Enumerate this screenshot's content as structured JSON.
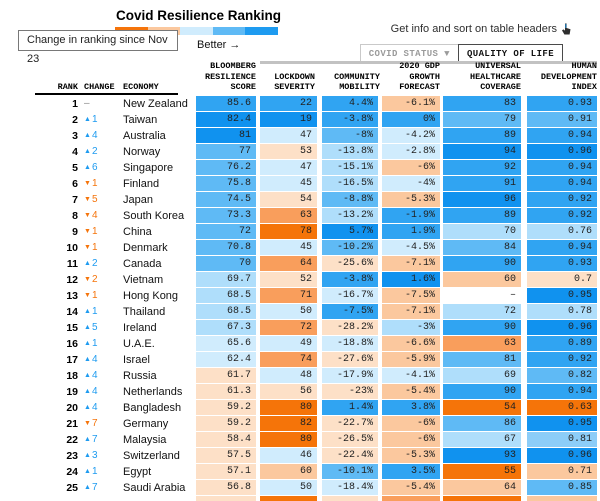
{
  "title": "Covid Resilience Ranking",
  "legend": {
    "tooltip": "Change in ranking since Nov 23",
    "better_label": "Better →",
    "gradient": [
      "#F5740B",
      "#FBC89E",
      "#D0ECFD",
      "#5FBAF5",
      "#1E9BF0"
    ]
  },
  "toolbar": {
    "hint": "Get info and sort on table headers",
    "tabs": [
      {
        "label": "COVID STATUS",
        "caret": "▼",
        "active": false
      },
      {
        "label": "QUALITY OF LIFE",
        "caret": "",
        "active": true
      }
    ]
  },
  "icons": {
    "up_arrow": "▲",
    "down_arrow": "▼",
    "no_change": "–",
    "pointer": "pointer-hand"
  },
  "palette": {
    "B1": "#1092EF",
    "B2": "#30A4F2",
    "B3": "#5FBAF5",
    "B4": "#8CCDF8",
    "B5": "#AFDEFB",
    "B6": "#D0ECFD",
    "O1": "#F57409",
    "O2": "#F99E5C",
    "O3": "#FBC89E",
    "O4": "#FDE0C7",
    "W": "#FFFFFF"
  },
  "headers": {
    "rank": "RANK",
    "change": "CHANGE",
    "economy": "ECONOMY",
    "score": "BLOOMBERG\nRESILIENCE\nSCORE",
    "lockdown": "LOCKDOWN\nSEVERITY",
    "mobility": "COMMUNITY\nMOBILITY",
    "gdp": "2020 GDP\nGROWTH\nFORECAST",
    "healthcare": "UNIVERSAL\nHEALTHCARE\nCOVERAGE",
    "hdi": "HUMAN\nDEVELOPMENT\nINDEX"
  },
  "chart_data": {
    "type": "table",
    "title": "Covid Resilience Ranking",
    "columns": [
      "Rank",
      "Change since Nov 23",
      "Economy",
      "Bloomberg Resilience Score",
      "Lockdown Severity",
      "Community Mobility",
      "2020 GDP Growth Forecast",
      "Universal Healthcare Coverage",
      "Human Development Index"
    ],
    "rows": [
      {
        "rank": "1",
        "dir": "none",
        "change": "–",
        "economy": "New Zealand",
        "score": {
          "v": "85.6",
          "c": "B2"
        },
        "lockdown": {
          "v": "22",
          "c": "B2"
        },
        "mobility": {
          "v": "4.4%",
          "c": "B2"
        },
        "gdp": {
          "v": "-6.1%",
          "c": "O3"
        },
        "healthcare": {
          "v": "83",
          "c": "B2"
        },
        "hdi": {
          "v": "0.93",
          "c": "B2"
        }
      },
      {
        "rank": "2",
        "dir": "up",
        "change": "1",
        "economy": "Taiwan",
        "score": {
          "v": "82.4",
          "c": "B1"
        },
        "lockdown": {
          "v": "19",
          "c": "B1"
        },
        "mobility": {
          "v": "-3.8%",
          "c": "B2"
        },
        "gdp": {
          "v": "0%",
          "c": "B2"
        },
        "healthcare": {
          "v": "79",
          "c": "B3"
        },
        "hdi": {
          "v": "0.91",
          "c": "B3"
        }
      },
      {
        "rank": "3",
        "dir": "up",
        "change": "4",
        "economy": "Australia",
        "score": {
          "v": "81",
          "c": "B1"
        },
        "lockdown": {
          "v": "47",
          "c": "B6"
        },
        "mobility": {
          "v": "-8%",
          "c": "B3"
        },
        "gdp": {
          "v": "-4.2%",
          "c": "B6"
        },
        "healthcare": {
          "v": "89",
          "c": "B2"
        },
        "hdi": {
          "v": "0.94",
          "c": "B2"
        }
      },
      {
        "rank": "4",
        "dir": "up",
        "change": "2",
        "economy": "Norway",
        "score": {
          "v": "77",
          "c": "B3"
        },
        "lockdown": {
          "v": "53",
          "c": "O4"
        },
        "mobility": {
          "v": "-13.8%",
          "c": "B5"
        },
        "gdp": {
          "v": "-2.8%",
          "c": "B6"
        },
        "healthcare": {
          "v": "94",
          "c": "B1"
        },
        "hdi": {
          "v": "0.96",
          "c": "B1"
        }
      },
      {
        "rank": "5",
        "dir": "up",
        "change": "6",
        "economy": "Singapore",
        "score": {
          "v": "76.2",
          "c": "B3"
        },
        "lockdown": {
          "v": "47",
          "c": "B6"
        },
        "mobility": {
          "v": "-15.1%",
          "c": "B5"
        },
        "gdp": {
          "v": "-6%",
          "c": "O3"
        },
        "healthcare": {
          "v": "92",
          "c": "B2"
        },
        "hdi": {
          "v": "0.94",
          "c": "B2"
        }
      },
      {
        "rank": "6",
        "dir": "down",
        "change": "1",
        "economy": "Finland",
        "score": {
          "v": "75.8",
          "c": "B3"
        },
        "lockdown": {
          "v": "45",
          "c": "B6"
        },
        "mobility": {
          "v": "-16.5%",
          "c": "B5"
        },
        "gdp": {
          "v": "-4%",
          "c": "B6"
        },
        "healthcare": {
          "v": "91",
          "c": "B2"
        },
        "hdi": {
          "v": "0.94",
          "c": "B2"
        }
      },
      {
        "rank": "7",
        "dir": "down",
        "change": "5",
        "economy": "Japan",
        "score": {
          "v": "74.5",
          "c": "B3"
        },
        "lockdown": {
          "v": "54",
          "c": "O4"
        },
        "mobility": {
          "v": "-8.8%",
          "c": "B3"
        },
        "gdp": {
          "v": "-5.3%",
          "c": "O3"
        },
        "healthcare": {
          "v": "96",
          "c": "B1"
        },
        "hdi": {
          "v": "0.92",
          "c": "B2"
        }
      },
      {
        "rank": "8",
        "dir": "down",
        "change": "4",
        "economy": "South Korea",
        "score": {
          "v": "73.3",
          "c": "B3"
        },
        "lockdown": {
          "v": "63",
          "c": "O2"
        },
        "mobility": {
          "v": "-13.2%",
          "c": "B5"
        },
        "gdp": {
          "v": "-1.9%",
          "c": "B2"
        },
        "healthcare": {
          "v": "89",
          "c": "B2"
        },
        "hdi": {
          "v": "0.92",
          "c": "B2"
        }
      },
      {
        "rank": "9",
        "dir": "down",
        "change": "1",
        "economy": "China",
        "score": {
          "v": "72",
          "c": "B3"
        },
        "lockdown": {
          "v": "78",
          "c": "O1"
        },
        "mobility": {
          "v": "5.7%",
          "c": "B1"
        },
        "gdp": {
          "v": "1.9%",
          "c": "B2"
        },
        "healthcare": {
          "v": "70",
          "c": "B5"
        },
        "hdi": {
          "v": "0.76",
          "c": "B5"
        }
      },
      {
        "rank": "10",
        "dir": "down",
        "change": "1",
        "economy": "Denmark",
        "score": {
          "v": "70.8",
          "c": "B3"
        },
        "lockdown": {
          "v": "45",
          "c": "B6"
        },
        "mobility": {
          "v": "-10.2%",
          "c": "B3"
        },
        "gdp": {
          "v": "-4.5%",
          "c": "B6"
        },
        "healthcare": {
          "v": "84",
          "c": "B3"
        },
        "hdi": {
          "v": "0.94",
          "c": "B2"
        }
      },
      {
        "rank": "11",
        "dir": "up",
        "change": "2",
        "economy": "Canada",
        "score": {
          "v": "70",
          "c": "B3"
        },
        "lockdown": {
          "v": "64",
          "c": "O2"
        },
        "mobility": {
          "v": "-25.6%",
          "c": "O4"
        },
        "gdp": {
          "v": "-7.1%",
          "c": "O3"
        },
        "healthcare": {
          "v": "90",
          "c": "B2"
        },
        "hdi": {
          "v": "0.93",
          "c": "B2"
        }
      },
      {
        "rank": "12",
        "dir": "down",
        "change": "2",
        "economy": "Vietnam",
        "score": {
          "v": "69.7",
          "c": "B5"
        },
        "lockdown": {
          "v": "52",
          "c": "O4"
        },
        "mobility": {
          "v": "-3.8%",
          "c": "B2"
        },
        "gdp": {
          "v": "1.6%",
          "c": "B1"
        },
        "healthcare": {
          "v": "60",
          "c": "O3"
        },
        "hdi": {
          "v": "0.7",
          "c": "O4"
        }
      },
      {
        "rank": "13",
        "dir": "down",
        "change": "1",
        "economy": "Hong Kong",
        "score": {
          "v": "68.5",
          "c": "B5"
        },
        "lockdown": {
          "v": "71",
          "c": "O2"
        },
        "mobility": {
          "v": "-16.7%",
          "c": "B6"
        },
        "gdp": {
          "v": "-7.5%",
          "c": "O3"
        },
        "healthcare": {
          "v": "–",
          "c": "W"
        },
        "hdi": {
          "v": "0.95",
          "c": "B1"
        }
      },
      {
        "rank": "14",
        "dir": "up",
        "change": "1",
        "economy": "Thailand",
        "score": {
          "v": "68.5",
          "c": "B5"
        },
        "lockdown": {
          "v": "50",
          "c": "B6"
        },
        "mobility": {
          "v": "-7.5%",
          "c": "B2"
        },
        "gdp": {
          "v": "-7.1%",
          "c": "O3"
        },
        "healthcare": {
          "v": "72",
          "c": "B5"
        },
        "hdi": {
          "v": "0.78",
          "c": "B5"
        }
      },
      {
        "rank": "15",
        "dir": "up",
        "change": "5",
        "economy": "Ireland",
        "score": {
          "v": "67.3",
          "c": "B5"
        },
        "lockdown": {
          "v": "72",
          "c": "O2"
        },
        "mobility": {
          "v": "-28.2%",
          "c": "O4"
        },
        "gdp": {
          "v": "-3%",
          "c": "B5"
        },
        "healthcare": {
          "v": "90",
          "c": "B2"
        },
        "hdi": {
          "v": "0.96",
          "c": "B1"
        }
      },
      {
        "rank": "16",
        "dir": "up",
        "change": "1",
        "economy": "U.A.E.",
        "score": {
          "v": "65.6",
          "c": "B6"
        },
        "lockdown": {
          "v": "49",
          "c": "B6"
        },
        "mobility": {
          "v": "-18.8%",
          "c": "B6"
        },
        "gdp": {
          "v": "-6.6%",
          "c": "O3"
        },
        "healthcare": {
          "v": "63",
          "c": "O2"
        },
        "hdi": {
          "v": "0.89",
          "c": "B2"
        }
      },
      {
        "rank": "17",
        "dir": "up",
        "change": "4",
        "economy": "Israel",
        "score": {
          "v": "62.4",
          "c": "B6"
        },
        "lockdown": {
          "v": "74",
          "c": "O2"
        },
        "mobility": {
          "v": "-27.6%",
          "c": "O4"
        },
        "gdp": {
          "v": "-5.9%",
          "c": "O3"
        },
        "healthcare": {
          "v": "81",
          "c": "B3"
        },
        "hdi": {
          "v": "0.92",
          "c": "B2"
        }
      },
      {
        "rank": "18",
        "dir": "up",
        "change": "4",
        "economy": "Russia",
        "score": {
          "v": "61.7",
          "c": "O4"
        },
        "lockdown": {
          "v": "48",
          "c": "B6"
        },
        "mobility": {
          "v": "-17.9%",
          "c": "B6"
        },
        "gdp": {
          "v": "-4.1%",
          "c": "B6"
        },
        "healthcare": {
          "v": "69",
          "c": "B5"
        },
        "hdi": {
          "v": "0.82",
          "c": "B3"
        }
      },
      {
        "rank": "19",
        "dir": "up",
        "change": "4",
        "economy": "Netherlands",
        "score": {
          "v": "61.3",
          "c": "O4"
        },
        "lockdown": {
          "v": "56",
          "c": "O4"
        },
        "mobility": {
          "v": "-23%",
          "c": "O4"
        },
        "gdp": {
          "v": "-5.4%",
          "c": "O3"
        },
        "healthcare": {
          "v": "90",
          "c": "B2"
        },
        "hdi": {
          "v": "0.94",
          "c": "B2"
        }
      },
      {
        "rank": "20",
        "dir": "up",
        "change": "4",
        "economy": "Bangladesh",
        "score": {
          "v": "59.2",
          "c": "O4"
        },
        "lockdown": {
          "v": "80",
          "c": "O1"
        },
        "mobility": {
          "v": "1.4%",
          "c": "B2"
        },
        "gdp": {
          "v": "3.8%",
          "c": "B2"
        },
        "healthcare": {
          "v": "54",
          "c": "O1"
        },
        "hdi": {
          "v": "0.63",
          "c": "O1"
        }
      },
      {
        "rank": "21",
        "dir": "down",
        "change": "7",
        "economy": "Germany",
        "score": {
          "v": "59.2",
          "c": "O4"
        },
        "lockdown": {
          "v": "82",
          "c": "O1"
        },
        "mobility": {
          "v": "-22.7%",
          "c": "O4"
        },
        "gdp": {
          "v": "-6%",
          "c": "O3"
        },
        "healthcare": {
          "v": "86",
          "c": "B3"
        },
        "hdi": {
          "v": "0.95",
          "c": "B1"
        }
      },
      {
        "rank": "22",
        "dir": "up",
        "change": "7",
        "economy": "Malaysia",
        "score": {
          "v": "58.4",
          "c": "O4"
        },
        "lockdown": {
          "v": "80",
          "c": "O1"
        },
        "mobility": {
          "v": "-26.5%",
          "c": "O4"
        },
        "gdp": {
          "v": "-6%",
          "c": "O3"
        },
        "healthcare": {
          "v": "67",
          "c": "B5"
        },
        "hdi": {
          "v": "0.81",
          "c": "B4"
        }
      },
      {
        "rank": "23",
        "dir": "up",
        "change": "3",
        "economy": "Switzerland",
        "score": {
          "v": "57.5",
          "c": "O4"
        },
        "lockdown": {
          "v": "46",
          "c": "B6"
        },
        "mobility": {
          "v": "-22.4%",
          "c": "O4"
        },
        "gdp": {
          "v": "-5.3%",
          "c": "O3"
        },
        "healthcare": {
          "v": "93",
          "c": "B1"
        },
        "hdi": {
          "v": "0.96",
          "c": "B1"
        }
      },
      {
        "rank": "24",
        "dir": "up",
        "change": "1",
        "economy": "Egypt",
        "score": {
          "v": "57.1",
          "c": "O4"
        },
        "lockdown": {
          "v": "60",
          "c": "O3"
        },
        "mobility": {
          "v": "-10.1%",
          "c": "B3"
        },
        "gdp": {
          "v": "3.5%",
          "c": "B2"
        },
        "healthcare": {
          "v": "55",
          "c": "O1"
        },
        "hdi": {
          "v": "0.71",
          "c": "O3"
        }
      },
      {
        "rank": "25",
        "dir": "up",
        "change": "7",
        "economy": "Saudi Arabia",
        "score": {
          "v": "56.8",
          "c": "O4"
        },
        "lockdown": {
          "v": "50",
          "c": "B6"
        },
        "mobility": {
          "v": "-18.4%",
          "c": "B6"
        },
        "gdp": {
          "v": "-5.4%",
          "c": "O3"
        },
        "healthcare": {
          "v": "64",
          "c": "O3"
        },
        "hdi": {
          "v": "0.85",
          "c": "B3"
        }
      }
    ],
    "partial_next_row_colors": {
      "score": "O4",
      "lockdown": "O1",
      "mobility": "O4",
      "gdp": "O2",
      "healthcare": "O1",
      "hdi": "O3"
    }
  }
}
